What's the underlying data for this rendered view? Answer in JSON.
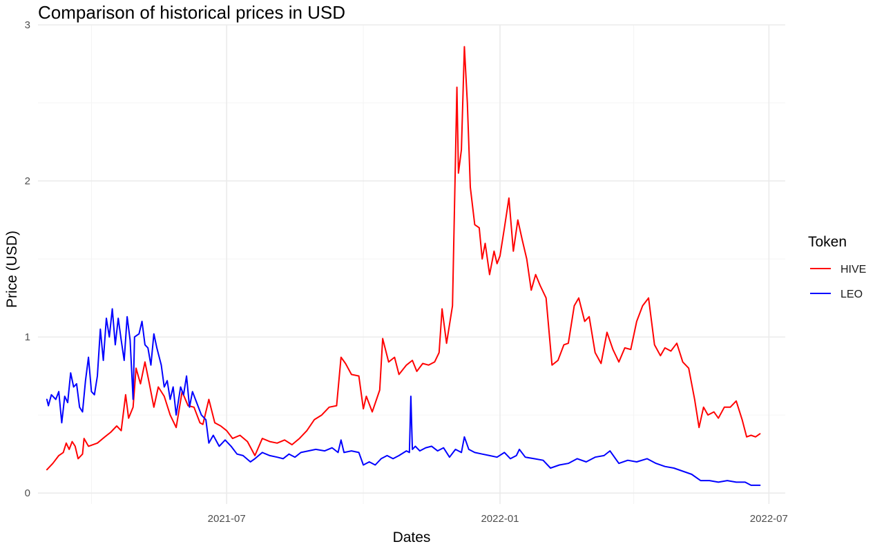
{
  "chart_data": {
    "type": "line",
    "title": "Comparison of historical prices in USD",
    "xlabel": "Dates",
    "ylabel": "Price (USD)",
    "x_axis": {
      "ticks": [
        "2021-07-01",
        "2022-01-01",
        "2022-07-01"
      ],
      "tick_labels": [
        "2021-07",
        "2022-01",
        "2022-07"
      ],
      "range": [
        "2021-02-24",
        "2022-07-12"
      ]
    },
    "y_axis": {
      "ticks": [
        0,
        1,
        2,
        3
      ],
      "tick_labels": [
        "0",
        "1",
        "2",
        "3"
      ],
      "range": [
        -0.07,
        3.0
      ]
    },
    "grid": true,
    "legend": {
      "title": "Token",
      "position": "right"
    },
    "series": [
      {
        "name": "HIVE",
        "color": "#ff0000",
        "points": [
          [
            "2021-03-02",
            0.15
          ],
          [
            "2021-03-06",
            0.19
          ],
          [
            "2021-03-10",
            0.24
          ],
          [
            "2021-03-13",
            0.26
          ],
          [
            "2021-03-15",
            0.32
          ],
          [
            "2021-03-17",
            0.28
          ],
          [
            "2021-03-19",
            0.33
          ],
          [
            "2021-03-21",
            0.3
          ],
          [
            "2021-03-23",
            0.22
          ],
          [
            "2021-03-26",
            0.25
          ],
          [
            "2021-03-27",
            0.35
          ],
          [
            "2021-03-30",
            0.3
          ],
          [
            "2021-04-05",
            0.32
          ],
          [
            "2021-04-10",
            0.36
          ],
          [
            "2021-04-14",
            0.39
          ],
          [
            "2021-04-18",
            0.43
          ],
          [
            "2021-04-21",
            0.4
          ],
          [
            "2021-04-24",
            0.63
          ],
          [
            "2021-04-26",
            0.48
          ],
          [
            "2021-04-29",
            0.55
          ],
          [
            "2021-05-01",
            0.8
          ],
          [
            "2021-05-04",
            0.7
          ],
          [
            "2021-05-07",
            0.84
          ],
          [
            "2021-05-10",
            0.7
          ],
          [
            "2021-05-13",
            0.55
          ],
          [
            "2021-05-16",
            0.68
          ],
          [
            "2021-05-20",
            0.62
          ],
          [
            "2021-05-24",
            0.5
          ],
          [
            "2021-05-28",
            0.42
          ],
          [
            "2021-06-01",
            0.65
          ],
          [
            "2021-06-05",
            0.56
          ],
          [
            "2021-06-09",
            0.55
          ],
          [
            "2021-06-13",
            0.45
          ],
          [
            "2021-06-15",
            0.44
          ],
          [
            "2021-06-19",
            0.6
          ],
          [
            "2021-06-23",
            0.45
          ],
          [
            "2021-06-27",
            0.43
          ],
          [
            "2021-07-01",
            0.4
          ],
          [
            "2021-07-05",
            0.35
          ],
          [
            "2021-07-10",
            0.37
          ],
          [
            "2021-07-15",
            0.33
          ],
          [
            "2021-07-20",
            0.24
          ],
          [
            "2021-07-25",
            0.35
          ],
          [
            "2021-07-30",
            0.33
          ],
          [
            "2021-08-04",
            0.32
          ],
          [
            "2021-08-09",
            0.34
          ],
          [
            "2021-08-14",
            0.31
          ],
          [
            "2021-08-19",
            0.35
          ],
          [
            "2021-08-24",
            0.4
          ],
          [
            "2021-08-29",
            0.47
          ],
          [
            "2021-09-03",
            0.5
          ],
          [
            "2021-09-08",
            0.55
          ],
          [
            "2021-09-13",
            0.56
          ],
          [
            "2021-09-16",
            0.87
          ],
          [
            "2021-09-19",
            0.83
          ],
          [
            "2021-09-23",
            0.76
          ],
          [
            "2021-09-28",
            0.75
          ],
          [
            "2021-10-01",
            0.54
          ],
          [
            "2021-10-03",
            0.62
          ],
          [
            "2021-10-07",
            0.52
          ],
          [
            "2021-10-12",
            0.66
          ],
          [
            "2021-10-14",
            0.99
          ],
          [
            "2021-10-18",
            0.84
          ],
          [
            "2021-10-22",
            0.87
          ],
          [
            "2021-10-25",
            0.76
          ],
          [
            "2021-10-30",
            0.82
          ],
          [
            "2021-11-03",
            0.85
          ],
          [
            "2021-11-06",
            0.78
          ],
          [
            "2021-11-10",
            0.83
          ],
          [
            "2021-11-14",
            0.82
          ],
          [
            "2021-11-18",
            0.84
          ],
          [
            "2021-11-21",
            0.9
          ],
          [
            "2021-11-23",
            1.18
          ],
          [
            "2021-11-26",
            0.96
          ],
          [
            "2021-11-30",
            1.2
          ],
          [
            "2021-12-03",
            2.6
          ],
          [
            "2021-12-04",
            2.05
          ],
          [
            "2021-12-06",
            2.2
          ],
          [
            "2021-12-08",
            2.86
          ],
          [
            "2021-12-10",
            2.5
          ],
          [
            "2021-12-12",
            1.96
          ],
          [
            "2021-12-15",
            1.72
          ],
          [
            "2021-12-18",
            1.7
          ],
          [
            "2021-12-20",
            1.5
          ],
          [
            "2021-12-22",
            1.6
          ],
          [
            "2021-12-25",
            1.4
          ],
          [
            "2021-12-28",
            1.55
          ],
          [
            "2021-12-30",
            1.47
          ],
          [
            "2022-01-01",
            1.52
          ],
          [
            "2022-01-04",
            1.7
          ],
          [
            "2022-01-07",
            1.89
          ],
          [
            "2022-01-10",
            1.55
          ],
          [
            "2022-01-13",
            1.75
          ],
          [
            "2022-01-16",
            1.62
          ],
          [
            "2022-01-19",
            1.5
          ],
          [
            "2022-01-22",
            1.3
          ],
          [
            "2022-01-25",
            1.4
          ],
          [
            "2022-01-28",
            1.33
          ],
          [
            "2022-02-01",
            1.25
          ],
          [
            "2022-02-05",
            0.82
          ],
          [
            "2022-02-09",
            0.85
          ],
          [
            "2022-02-13",
            0.95
          ],
          [
            "2022-02-16",
            0.96
          ],
          [
            "2022-02-20",
            1.2
          ],
          [
            "2022-02-23",
            1.25
          ],
          [
            "2022-02-27",
            1.1
          ],
          [
            "2022-03-02",
            1.13
          ],
          [
            "2022-03-06",
            0.9
          ],
          [
            "2022-03-10",
            0.83
          ],
          [
            "2022-03-14",
            1.03
          ],
          [
            "2022-03-18",
            0.92
          ],
          [
            "2022-03-22",
            0.84
          ],
          [
            "2022-03-26",
            0.93
          ],
          [
            "2022-03-30",
            0.92
          ],
          [
            "2022-04-03",
            1.1
          ],
          [
            "2022-04-07",
            1.2
          ],
          [
            "2022-04-11",
            1.25
          ],
          [
            "2022-04-15",
            0.95
          ],
          [
            "2022-04-19",
            0.88
          ],
          [
            "2022-04-22",
            0.93
          ],
          [
            "2022-04-26",
            0.91
          ],
          [
            "2022-04-30",
            0.96
          ],
          [
            "2022-05-04",
            0.84
          ],
          [
            "2022-05-08",
            0.8
          ],
          [
            "2022-05-12",
            0.6
          ],
          [
            "2022-05-15",
            0.42
          ],
          [
            "2022-05-18",
            0.55
          ],
          [
            "2022-05-21",
            0.5
          ],
          [
            "2022-05-25",
            0.52
          ],
          [
            "2022-05-28",
            0.48
          ],
          [
            "2022-06-01",
            0.55
          ],
          [
            "2022-06-05",
            0.55
          ],
          [
            "2022-06-09",
            0.59
          ],
          [
            "2022-06-13",
            0.47
          ],
          [
            "2022-06-16",
            0.36
          ],
          [
            "2022-06-19",
            0.37
          ],
          [
            "2022-06-22",
            0.36
          ],
          [
            "2022-06-25",
            0.38
          ]
        ]
      },
      {
        "name": "LEO",
        "color": "#0000ff",
        "points": [
          [
            "2021-03-02",
            0.6
          ],
          [
            "2021-03-03",
            0.56
          ],
          [
            "2021-03-05",
            0.63
          ],
          [
            "2021-03-08",
            0.6
          ],
          [
            "2021-03-10",
            0.65
          ],
          [
            "2021-03-12",
            0.45
          ],
          [
            "2021-03-14",
            0.62
          ],
          [
            "2021-03-16",
            0.58
          ],
          [
            "2021-03-18",
            0.77
          ],
          [
            "2021-03-20",
            0.68
          ],
          [
            "2021-03-22",
            0.7
          ],
          [
            "2021-03-24",
            0.55
          ],
          [
            "2021-03-26",
            0.52
          ],
          [
            "2021-03-28",
            0.72
          ],
          [
            "2021-03-30",
            0.87
          ],
          [
            "2021-04-01",
            0.65
          ],
          [
            "2021-04-03",
            0.63
          ],
          [
            "2021-04-05",
            0.75
          ],
          [
            "2021-04-07",
            1.05
          ],
          [
            "2021-04-09",
            0.85
          ],
          [
            "2021-04-11",
            1.12
          ],
          [
            "2021-04-13",
            1.0
          ],
          [
            "2021-04-15",
            1.18
          ],
          [
            "2021-04-17",
            0.95
          ],
          [
            "2021-04-19",
            1.12
          ],
          [
            "2021-04-21",
            0.98
          ],
          [
            "2021-04-23",
            0.85
          ],
          [
            "2021-04-25",
            1.13
          ],
          [
            "2021-04-27",
            0.98
          ],
          [
            "2021-04-29",
            0.6
          ],
          [
            "2021-04-30",
            1.0
          ],
          [
            "2021-05-03",
            1.02
          ],
          [
            "2021-05-05",
            1.1
          ],
          [
            "2021-05-07",
            0.95
          ],
          [
            "2021-05-09",
            0.93
          ],
          [
            "2021-05-11",
            0.82
          ],
          [
            "2021-05-13",
            1.02
          ],
          [
            "2021-05-15",
            0.93
          ],
          [
            "2021-05-18",
            0.82
          ],
          [
            "2021-05-20",
            0.68
          ],
          [
            "2021-05-22",
            0.72
          ],
          [
            "2021-05-24",
            0.6
          ],
          [
            "2021-05-26",
            0.68
          ],
          [
            "2021-05-28",
            0.5
          ],
          [
            "2021-05-31",
            0.68
          ],
          [
            "2021-06-02",
            0.63
          ],
          [
            "2021-06-04",
            0.75
          ],
          [
            "2021-06-06",
            0.55
          ],
          [
            "2021-06-08",
            0.65
          ],
          [
            "2021-06-10",
            0.6
          ],
          [
            "2021-06-14",
            0.5
          ],
          [
            "2021-06-17",
            0.47
          ],
          [
            "2021-06-19",
            0.32
          ],
          [
            "2021-06-22",
            0.37
          ],
          [
            "2021-06-26",
            0.3
          ],
          [
            "2021-06-30",
            0.34
          ],
          [
            "2021-07-04",
            0.3
          ],
          [
            "2021-07-08",
            0.25
          ],
          [
            "2021-07-12",
            0.24
          ],
          [
            "2021-07-17",
            0.2
          ],
          [
            "2021-07-20",
            0.22
          ],
          [
            "2021-07-25",
            0.26
          ],
          [
            "2021-07-30",
            0.24
          ],
          [
            "2021-08-04",
            0.23
          ],
          [
            "2021-08-08",
            0.22
          ],
          [
            "2021-08-12",
            0.25
          ],
          [
            "2021-08-16",
            0.23
          ],
          [
            "2021-08-20",
            0.26
          ],
          [
            "2021-08-25",
            0.27
          ],
          [
            "2021-08-30",
            0.28
          ],
          [
            "2021-09-05",
            0.27
          ],
          [
            "2021-09-10",
            0.29
          ],
          [
            "2021-09-14",
            0.26
          ],
          [
            "2021-09-16",
            0.34
          ],
          [
            "2021-09-18",
            0.26
          ],
          [
            "2021-09-23",
            0.27
          ],
          [
            "2021-09-28",
            0.26
          ],
          [
            "2021-10-01",
            0.18
          ],
          [
            "2021-10-05",
            0.2
          ],
          [
            "2021-10-09",
            0.18
          ],
          [
            "2021-10-13",
            0.22
          ],
          [
            "2021-10-17",
            0.24
          ],
          [
            "2021-10-21",
            0.22
          ],
          [
            "2021-10-25",
            0.24
          ],
          [
            "2021-10-30",
            0.27
          ],
          [
            "2021-11-01",
            0.26
          ],
          [
            "2021-11-02",
            0.62
          ],
          [
            "2021-11-03",
            0.28
          ],
          [
            "2021-11-05",
            0.3
          ],
          [
            "2021-11-08",
            0.27
          ],
          [
            "2021-11-12",
            0.29
          ],
          [
            "2021-11-16",
            0.3
          ],
          [
            "2021-11-20",
            0.27
          ],
          [
            "2021-11-24",
            0.29
          ],
          [
            "2021-11-28",
            0.23
          ],
          [
            "2021-12-02",
            0.28
          ],
          [
            "2021-12-06",
            0.26
          ],
          [
            "2021-12-08",
            0.36
          ],
          [
            "2021-12-11",
            0.28
          ],
          [
            "2021-12-15",
            0.26
          ],
          [
            "2021-12-20",
            0.25
          ],
          [
            "2021-12-25",
            0.24
          ],
          [
            "2021-12-30",
            0.23
          ],
          [
            "2022-01-04",
            0.26
          ],
          [
            "2022-01-08",
            0.22
          ],
          [
            "2022-01-12",
            0.24
          ],
          [
            "2022-01-14",
            0.28
          ],
          [
            "2022-01-18",
            0.23
          ],
          [
            "2022-01-24",
            0.22
          ],
          [
            "2022-01-30",
            0.21
          ],
          [
            "2022-02-04",
            0.16
          ],
          [
            "2022-02-10",
            0.18
          ],
          [
            "2022-02-16",
            0.19
          ],
          [
            "2022-02-22",
            0.22
          ],
          [
            "2022-02-28",
            0.2
          ],
          [
            "2022-03-06",
            0.23
          ],
          [
            "2022-03-12",
            0.24
          ],
          [
            "2022-03-16",
            0.27
          ],
          [
            "2022-03-22",
            0.19
          ],
          [
            "2022-03-28",
            0.21
          ],
          [
            "2022-04-03",
            0.2
          ],
          [
            "2022-04-10",
            0.22
          ],
          [
            "2022-04-16",
            0.19
          ],
          [
            "2022-04-22",
            0.17
          ],
          [
            "2022-04-28",
            0.16
          ],
          [
            "2022-05-04",
            0.14
          ],
          [
            "2022-05-10",
            0.12
          ],
          [
            "2022-05-16",
            0.08
          ],
          [
            "2022-05-22",
            0.08
          ],
          [
            "2022-05-28",
            0.07
          ],
          [
            "2022-06-03",
            0.08
          ],
          [
            "2022-06-09",
            0.07
          ],
          [
            "2022-06-15",
            0.07
          ],
          [
            "2022-06-19",
            0.05
          ],
          [
            "2022-06-25",
            0.05
          ]
        ]
      }
    ]
  }
}
